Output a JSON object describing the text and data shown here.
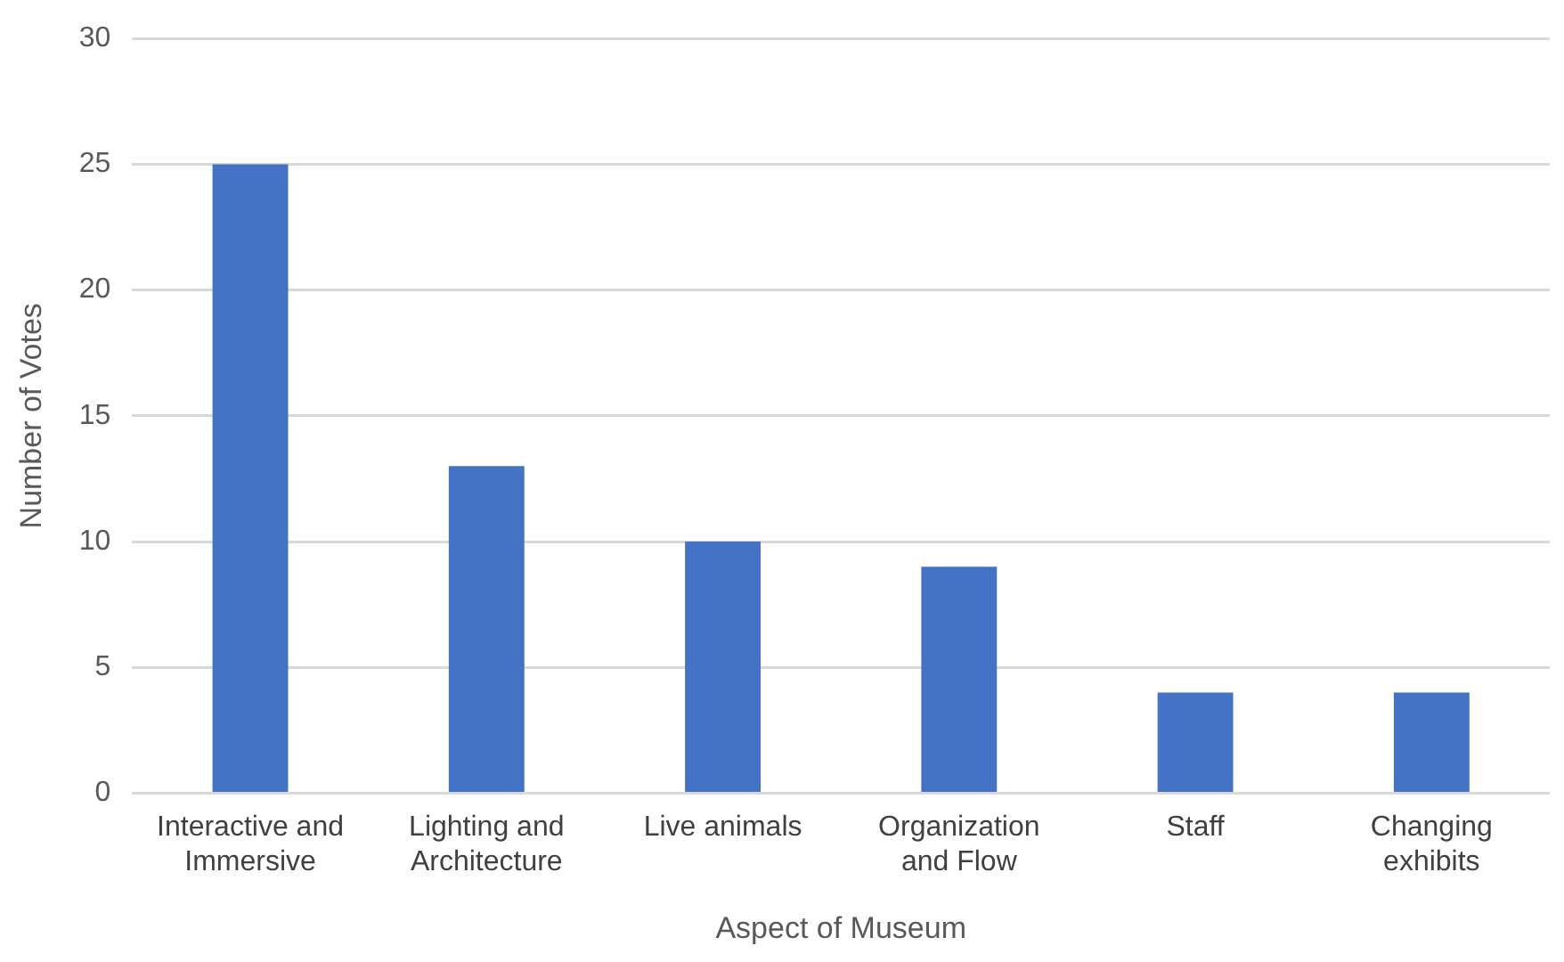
{
  "chart_data": {
    "type": "bar",
    "xlabel": "Aspect of Museum",
    "ylabel": "Number of Votes",
    "categories": [
      "Interactive and Immersive",
      "Lighting and Architecture",
      "Live animals",
      "Organization and Flow",
      "Staff",
      "Changing exhibits"
    ],
    "values": [
      25,
      13,
      10,
      9,
      4,
      4
    ],
    "color": "#4472c4",
    "ylim": [
      0,
      30
    ],
    "yticks": [
      0,
      5,
      10,
      15,
      20,
      25,
      30
    ],
    "grid": "y"
  }
}
